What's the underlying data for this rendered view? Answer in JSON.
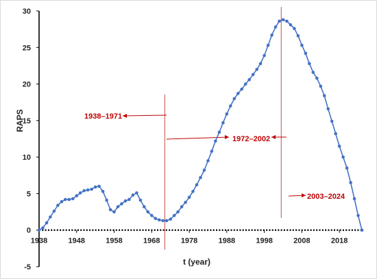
{
  "chart_data": {
    "type": "line",
    "title": "",
    "xlabel": "t (year)",
    "ylabel": "RAPS",
    "xlim": [
      1938,
      2024
    ],
    "ylim": [
      -5,
      30
    ],
    "x_ticks": [
      "1938",
      "1948",
      "1958",
      "1968",
      "1978",
      "1988",
      "1998",
      "2008",
      "2018"
    ],
    "y_ticks": [
      "-5",
      "0",
      "5",
      "10",
      "15",
      "20",
      "25",
      "30"
    ],
    "grid": false,
    "series_color": "#4472c4",
    "marker": "circle",
    "series": [
      {
        "x": [
          1938,
          1939,
          1940,
          1941,
          1942,
          1943,
          1944,
          1945,
          1946,
          1947,
          1948,
          1949,
          1950,
          1951,
          1952,
          1953,
          1954,
          1955,
          1956,
          1957,
          1958,
          1959,
          1960,
          1961,
          1962,
          1963,
          1964,
          1965,
          1966,
          1967,
          1968,
          1969,
          1970,
          1971,
          1972,
          1973,
          1974,
          1975,
          1976,
          1977,
          1978,
          1979,
          1980,
          1981,
          1982,
          1983,
          1984,
          1985,
          1986,
          1987,
          1988,
          1989,
          1990,
          1991,
          1992,
          1993,
          1994,
          1995,
          1996,
          1997,
          1998,
          1999,
          2000,
          2001,
          2002,
          2003,
          2004,
          2005,
          2006,
          2007,
          2008,
          2009,
          2010,
          2011,
          2012,
          2013,
          2014,
          2015,
          2016,
          2017,
          2018,
          2019,
          2020,
          2021,
          2022,
          2023,
          2024
        ],
        "y": [
          0,
          0.3,
          1.0,
          1.8,
          2.6,
          3.4,
          3.9,
          4.2,
          4.2,
          4.3,
          4.7,
          5.1,
          5.4,
          5.5,
          5.6,
          5.9,
          6.0,
          5.3,
          4.1,
          2.8,
          2.5,
          3.2,
          3.6,
          4.0,
          4.2,
          4.8,
          5.1,
          4.1,
          3.2,
          2.5,
          2.0,
          1.6,
          1.4,
          1.3,
          1.3,
          1.5,
          2.0,
          2.5,
          3.2,
          3.8,
          4.5,
          5.3,
          6.2,
          7.2,
          8.2,
          9.5,
          10.8,
          12.2,
          13.4,
          14.7,
          15.9,
          17.0,
          18.0,
          18.7,
          19.3,
          20.0,
          20.6,
          21.3,
          22.0,
          22.8,
          23.9,
          25.3,
          26.7,
          27.8,
          28.6,
          28.8,
          28.6,
          28.1,
          27.6,
          26.6,
          25.3,
          24.2,
          22.8,
          21.6,
          20.8,
          19.7,
          18.4,
          16.6,
          14.9,
          13.2,
          11.5,
          10.0,
          8.5,
          6.5,
          4.3,
          2.0,
          0
        ]
      }
    ],
    "annotations": [
      "1938–1971",
      "1972–2002",
      "2003–2024"
    ],
    "divider_years": [
      1971.5,
      2002.5
    ],
    "annotation_color": "#c00000"
  }
}
